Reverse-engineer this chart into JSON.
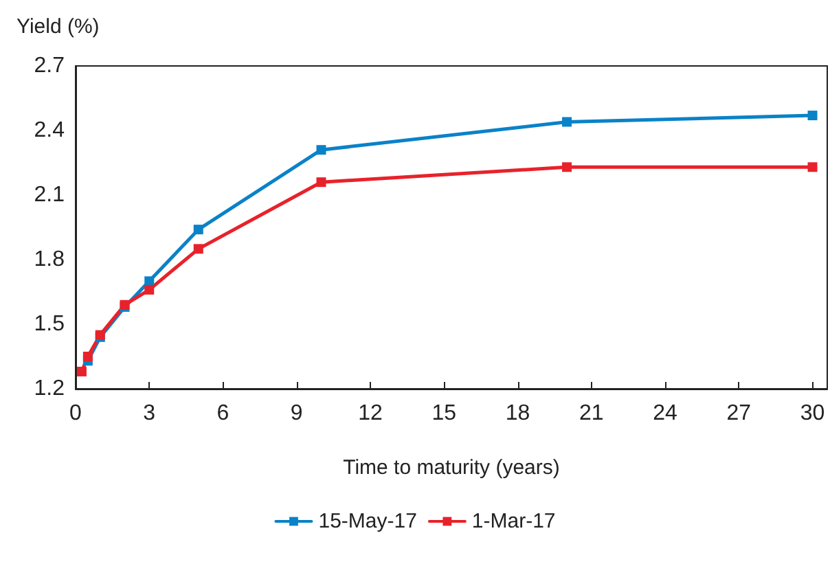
{
  "chart_data": {
    "type": "line",
    "xlabel": "Time to maturity (years)",
    "ylabel": "Yield (%)",
    "x": [
      0.25,
      0.5,
      1,
      2,
      3,
      5,
      10,
      20,
      30
    ],
    "series": [
      {
        "name": "15-May-17",
        "color": "#0a82c8",
        "values": [
          null,
          1.33,
          1.44,
          1.58,
          1.7,
          1.94,
          2.31,
          2.44,
          2.47
        ]
      },
      {
        "name": "1-Mar-17",
        "color": "#e8222a",
        "values": [
          1.28,
          1.35,
          1.45,
          1.59,
          1.66,
          1.85,
          2.16,
          2.23,
          2.23
        ]
      }
    ],
    "xlim": [
      0,
      30.6
    ],
    "xticks": [
      0,
      3,
      6,
      9,
      12,
      15,
      18,
      21,
      24,
      27,
      30
    ],
    "ylim": [
      1.2,
      2.7
    ],
    "yticks": [
      1.2,
      1.5,
      1.8,
      2.1,
      2.4,
      2.7
    ],
    "grid": false,
    "legend": "bottom",
    "marker": "square",
    "line_style": "solid"
  }
}
